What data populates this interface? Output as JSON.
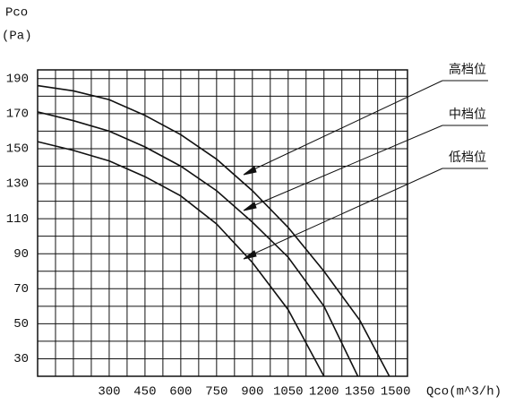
{
  "chart_data": {
    "type": "line",
    "y_label": "Pco",
    "y_unit": "(Pa)",
    "x_label": "Qco(m^3/h)",
    "xlim": [
      0,
      1550
    ],
    "ylim": [
      20,
      195
    ],
    "xticks": [
      300,
      450,
      600,
      750,
      900,
      1050,
      1200,
      1350,
      1500
    ],
    "yticks": [
      30,
      50,
      70,
      90,
      110,
      130,
      150,
      170,
      190
    ],
    "xgrid": [
      75,
      150,
      225,
      300,
      375,
      450,
      525,
      600,
      675,
      750,
      825,
      900,
      975,
      1050,
      1125,
      1200,
      1275,
      1350,
      1425,
      1500
    ],
    "ygrid": [
      30,
      40,
      50,
      60,
      70,
      80,
      90,
      100,
      110,
      120,
      130,
      140,
      150,
      160,
      170,
      180,
      190
    ],
    "grid": true,
    "series": [
      {
        "name": "高档位",
        "color": "#111111",
        "x": [
          0,
          150,
          300,
          450,
          600,
          750,
          900,
          1050,
          1200,
          1350,
          1474
        ],
        "values": [
          186,
          183,
          178,
          169,
          158,
          144,
          126,
          105,
          80,
          52,
          20
        ]
      },
      {
        "name": "中档位",
        "color": "#111111",
        "x": [
          0,
          150,
          300,
          450,
          600,
          750,
          900,
          1050,
          1200,
          1342
        ],
        "values": [
          171,
          166,
          160,
          151,
          140,
          126,
          108,
          88,
          60,
          20
        ]
      },
      {
        "name": "低档位",
        "color": "#111111",
        "x": [
          0,
          150,
          300,
          450,
          600,
          750,
          900,
          1050,
          1200
        ],
        "values": [
          154,
          149,
          143,
          134,
          123,
          107,
          85,
          58,
          20
        ]
      }
    ]
  }
}
